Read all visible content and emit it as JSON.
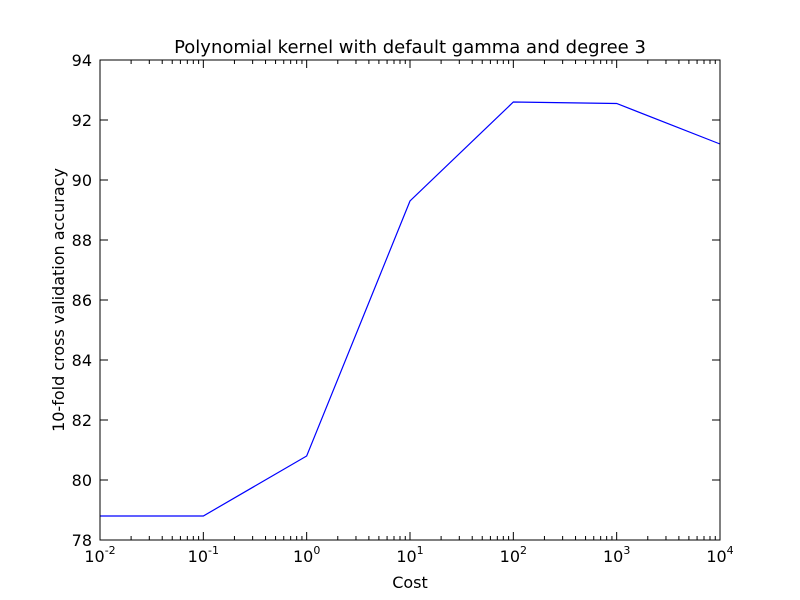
{
  "chart_data": {
    "type": "line",
    "title": "Polynomial kernel with default gamma and degree 3",
    "xlabel": "Cost",
    "ylabel": "10-fold cross validation accuracy",
    "xscale": "log",
    "xlim": [
      0.01,
      10000
    ],
    "ylim": [
      78,
      94
    ],
    "x_ticks": [
      {
        "base": "10",
        "exp": "-2"
      },
      {
        "base": "10",
        "exp": "-1"
      },
      {
        "base": "10",
        "exp": "0"
      },
      {
        "base": "10",
        "exp": "1"
      },
      {
        "base": "10",
        "exp": "2"
      },
      {
        "base": "10",
        "exp": "3"
      },
      {
        "base": "10",
        "exp": "4"
      }
    ],
    "y_ticks": [
      "78",
      "80",
      "82",
      "84",
      "86",
      "88",
      "90",
      "92",
      "94"
    ],
    "grid": false,
    "series": [
      {
        "color": "#0000ff",
        "x": [
          0.01,
          0.1,
          1,
          10,
          100,
          1000,
          10000
        ],
        "y": [
          78.8,
          78.8,
          80.8,
          89.3,
          92.6,
          92.55,
          91.2
        ]
      }
    ]
  }
}
